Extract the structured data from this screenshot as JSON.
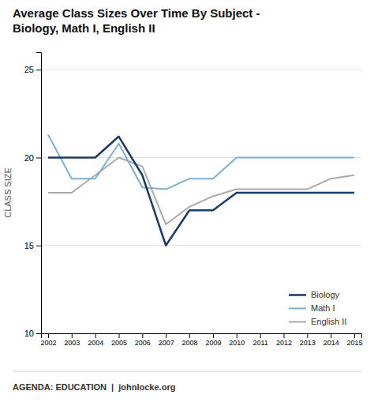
{
  "chart_data": {
    "type": "line",
    "title": "Average Class Sizes Over Time By Subject -\nBiology, Math I, English II",
    "y_label": "CLASS SIZE",
    "annotations": [
      "AGENDA: EDUCATION  |  johnlocke.org"
    ],
    "x": [
      2002,
      2003,
      2004,
      2005,
      2006,
      2007,
      2008,
      2009,
      2010,
      2011,
      2012,
      2013,
      2014,
      2015
    ],
    "series": [
      {
        "name": "Biology",
        "color": "#1a3a6b",
        "values": [
          20.0,
          20.0,
          20.0,
          21.2,
          19.0,
          15.0,
          17.0,
          17.0,
          18.0,
          18.0,
          18.0,
          18.0,
          18.0,
          18.0
        ]
      },
      {
        "name": "Math I",
        "color": "#7bafd4",
        "values": [
          21.3,
          18.8,
          18.8,
          20.8,
          18.3,
          18.2,
          18.8,
          18.8,
          20.0,
          20.0,
          20.0,
          20.0,
          20.0,
          20.0
        ]
      },
      {
        "name": "English II",
        "color": "#aaaaaa",
        "values": [
          18.0,
          18.0,
          19.0,
          20.0,
          19.5,
          16.2,
          17.2,
          17.8,
          18.2,
          18.2,
          18.2,
          18.2,
          18.8,
          19.0
        ]
      }
    ],
    "xlim": [
      2001.7,
      2015.3
    ],
    "xticks": [
      2002,
      2003,
      2004,
      2005,
      2006,
      2007,
      2008,
      2009,
      2010,
      2011,
      2012,
      2013,
      2014,
      2015
    ],
    "ylim": [
      10,
      26
    ],
    "yticks": [
      10,
      15,
      20,
      25
    ],
    "grid": true,
    "legend": "lower right"
  }
}
